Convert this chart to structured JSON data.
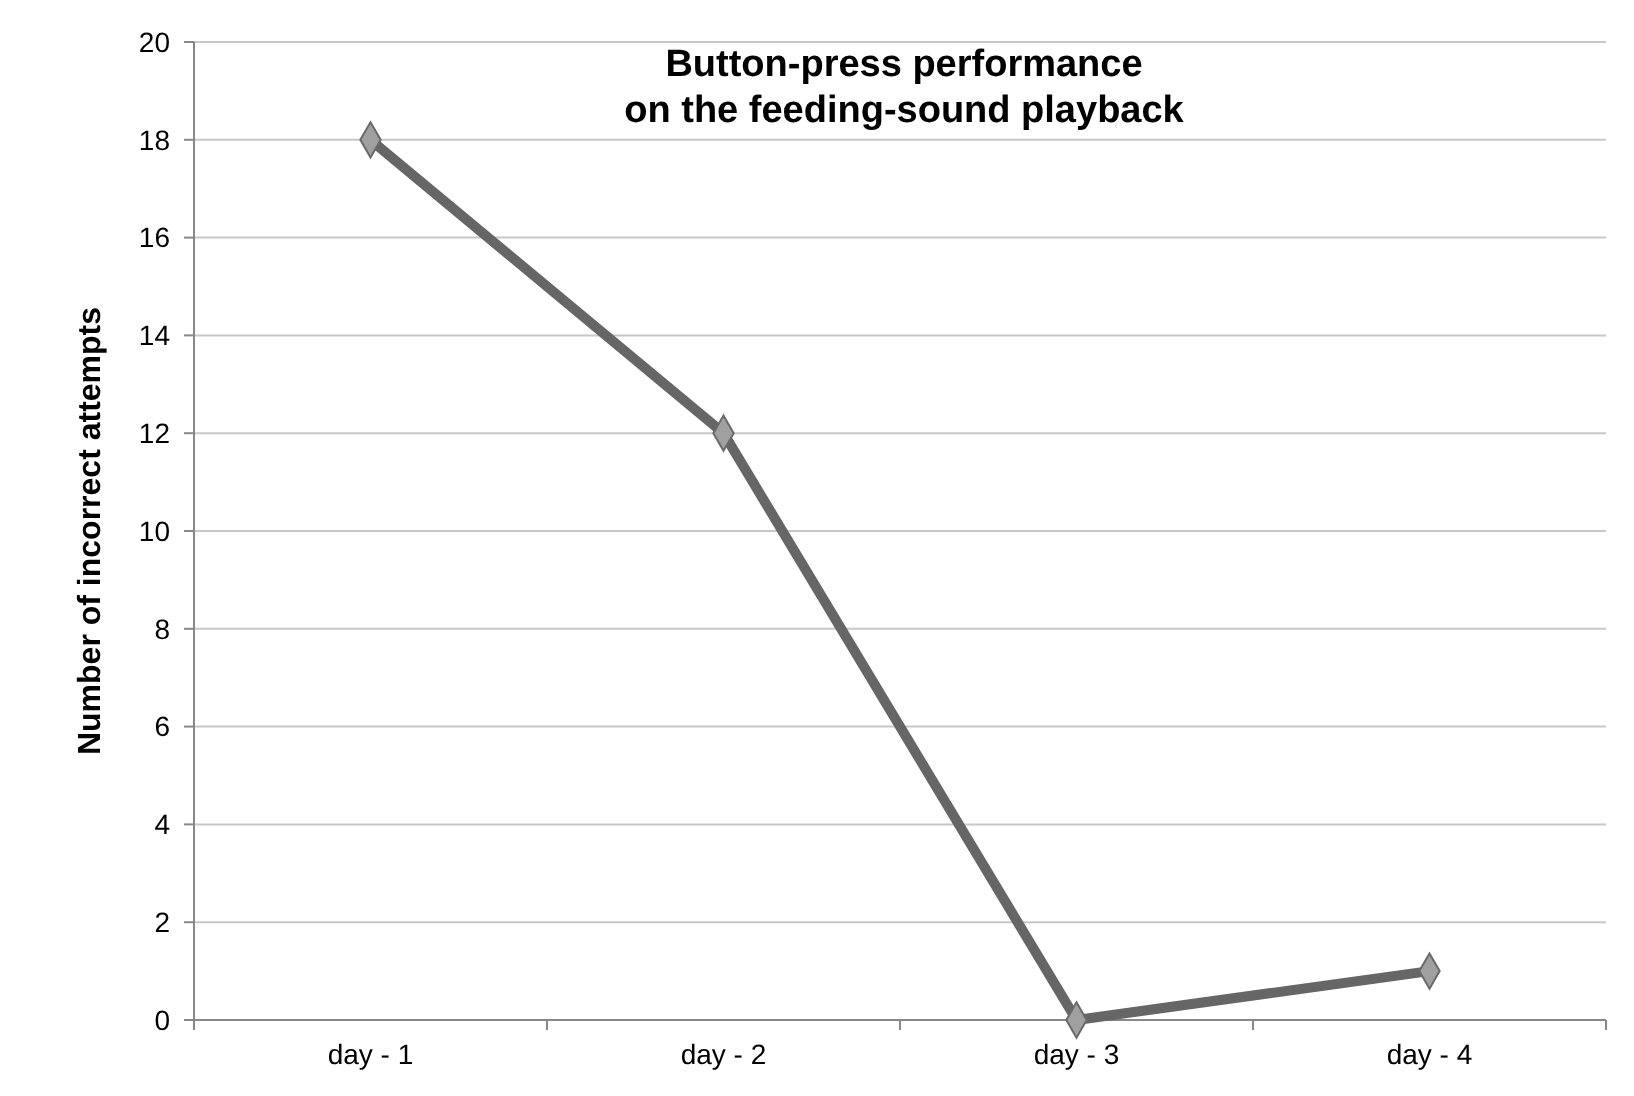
{
  "chart_data": {
    "type": "line",
    "title": "Button-press performance\non the feeding-sound playback",
    "ylabel": "Number of incorrect attempts",
    "categories": [
      "day - 1",
      "day - 2",
      "day - 3",
      "day - 4"
    ],
    "series": [
      {
        "color": "#666666",
        "values": [
          18,
          12,
          0,
          1
        ]
      }
    ],
    "ylim": [
      0,
      20
    ],
    "yticks": [
      0,
      2,
      4,
      6,
      8,
      10,
      12,
      14,
      16,
      18,
      20
    ],
    "grid": "y",
    "marker": "diamond",
    "line_style": "solid"
  }
}
